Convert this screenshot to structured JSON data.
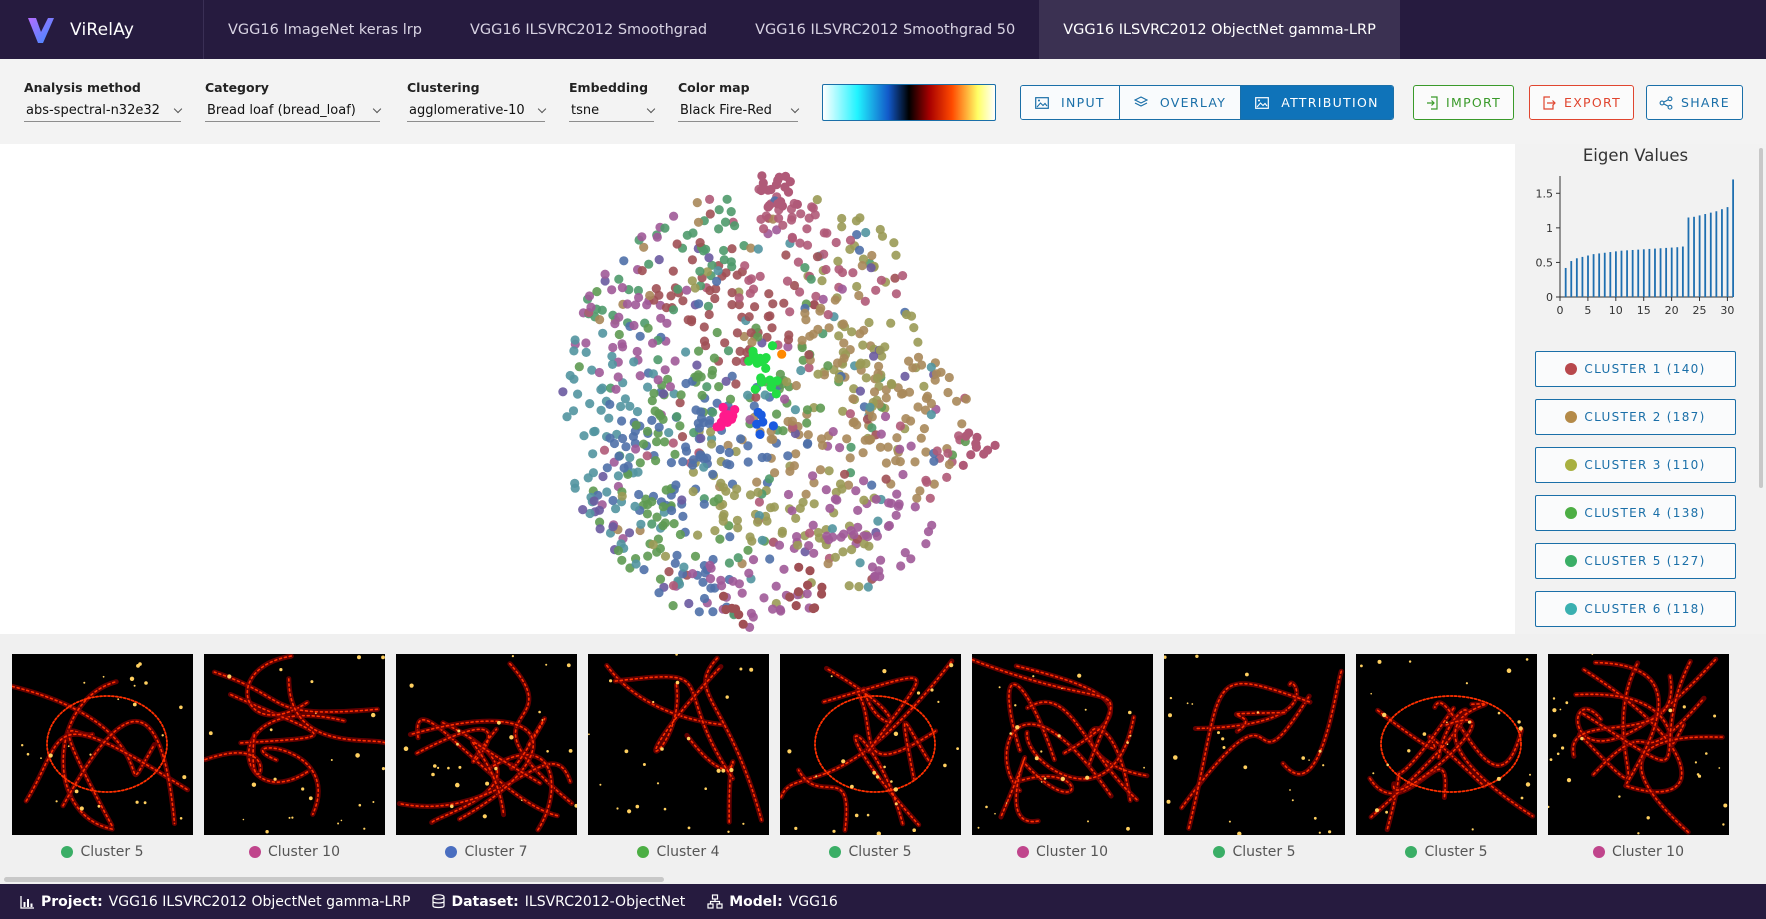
{
  "app": {
    "name": "ViRelAy"
  },
  "tabs": [
    {
      "label": "VGG16 ImageNet keras lrp",
      "active": false
    },
    {
      "label": "VGG16 ILSVRC2012 Smoothgrad",
      "active": false
    },
    {
      "label": "VGG16 ILSVRC2012 Smoothgrad 50",
      "active": false
    },
    {
      "label": "VGG16 ILSVRC2012 ObjectNet gamma-LRP",
      "active": true
    }
  ],
  "toolbar": {
    "analysis_method": {
      "label": "Analysis method",
      "value": "abs-spectral-n32e32"
    },
    "category": {
      "label": "Category",
      "value": "Bread loaf (bread_loaf)"
    },
    "clustering": {
      "label": "Clustering",
      "value": "agglomerative-10"
    },
    "embedding": {
      "label": "Embedding",
      "value": "tsne"
    },
    "color_map": {
      "label": "Color map",
      "value": "Black Fire-Red"
    },
    "view_modes": [
      "INPUT",
      "OVERLAY",
      "ATTRIBUTION"
    ],
    "active_view_mode": "ATTRIBUTION",
    "import_label": "IMPORT",
    "export_label": "EXPORT",
    "share_label": "SHARE"
  },
  "colors": {
    "header_bg": "#261b3f",
    "accent": "#1a6fa8",
    "accent_active": "#0f73b9",
    "import": "#3a9a2a",
    "export": "#e0452f",
    "heatmap": [
      "#000000",
      "#7a0000",
      "#ff3000",
      "#ffd060"
    ]
  },
  "eigen": {
    "title": "Eigen Values",
    "x_ticks": [
      0,
      5,
      10,
      15,
      20,
      25,
      30
    ],
    "y_ticks": [
      0,
      0.5,
      1,
      1.5
    ],
    "chart_data": {
      "type": "bar",
      "x": [
        1,
        2,
        3,
        4,
        5,
        6,
        7,
        8,
        9,
        10,
        11,
        12,
        13,
        14,
        15,
        16,
        17,
        18,
        19,
        20,
        21,
        22,
        23,
        24,
        25,
        26,
        27,
        28,
        29,
        30,
        31
      ],
      "values": [
        0.42,
        0.52,
        0.56,
        0.58,
        0.6,
        0.62,
        0.63,
        0.64,
        0.65,
        0.66,
        0.67,
        0.675,
        0.68,
        0.685,
        0.69,
        0.695,
        0.7,
        0.705,
        0.71,
        0.715,
        0.72,
        0.73,
        1.15,
        1.16,
        1.18,
        1.2,
        1.22,
        1.24,
        1.27,
        1.3,
        1.7
      ],
      "ylim": [
        0,
        1.75
      ],
      "xlim": [
        0,
        31
      ]
    }
  },
  "clusters": [
    {
      "label": "CLUSTER 1 (140)",
      "color": "#b8484c"
    },
    {
      "label": "CLUSTER 2 (187)",
      "color": "#b48a48"
    },
    {
      "label": "CLUSTER 3 (110)",
      "color": "#a8b040"
    },
    {
      "label": "CLUSTER 4 (138)",
      "color": "#4cae44"
    },
    {
      "label": "CLUSTER 5 (127)",
      "color": "#3aae66"
    },
    {
      "label": "CLUSTER 6 (118)",
      "color": "#3ab0b0"
    }
  ],
  "scatter_palette": [
    "#a05055",
    "#a8885a",
    "#9a9a55",
    "#5e9a52",
    "#4f9a6c",
    "#5295a0",
    "#4f70a8",
    "#6a5aa0",
    "#a05a98",
    "#b05a78"
  ],
  "scatter_highlight": [
    "#ff1a8c",
    "#22dd44",
    "#1a5ae0",
    "#ff8800"
  ],
  "gallery": [
    {
      "label": "Cluster 5",
      "color": "#3aae66"
    },
    {
      "label": "Cluster 10",
      "color": "#c0458c"
    },
    {
      "label": "Cluster 7",
      "color": "#4a6ec0"
    },
    {
      "label": "Cluster 4",
      "color": "#4cae44"
    },
    {
      "label": "Cluster 5",
      "color": "#3aae66"
    },
    {
      "label": "Cluster 10",
      "color": "#c0458c"
    },
    {
      "label": "Cluster 5",
      "color": "#3aae66"
    },
    {
      "label": "Cluster 5",
      "color": "#3aae66"
    },
    {
      "label": "Cluster 10",
      "color": "#c0458c"
    }
  ],
  "footer": {
    "project_key": "Project:",
    "project_value": "VGG16 ILSVRC2012 ObjectNet gamma-LRP",
    "dataset_key": "Dataset:",
    "dataset_value": "ILSVRC2012-ObjectNet",
    "model_key": "Model:",
    "model_value": "VGG16"
  }
}
